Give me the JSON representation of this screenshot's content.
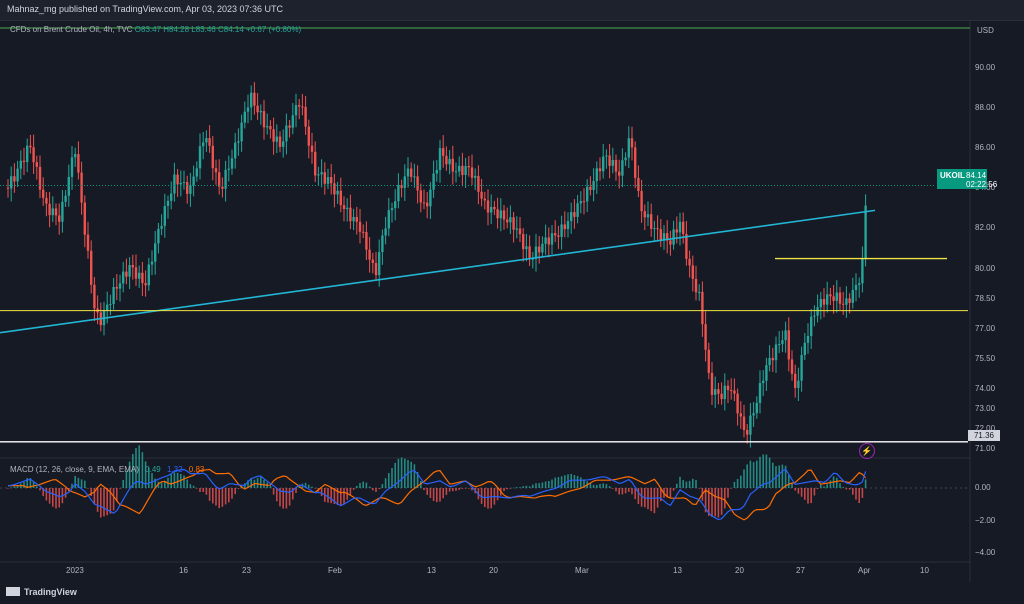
{
  "header": {
    "published": "Mahnaz_mg published on TradingView.com, Apr 03, 2023 07:36 UTC"
  },
  "legend": {
    "symbol": "CFDs on Brent Crude Oil, 4h, TVC",
    "ohlc": "O83.47 H84.28 L83.46 C84.14 +0.67 (+0.80%)"
  },
  "price_axis": {
    "currency": "USD",
    "ticks": [
      "90.00",
      "88.00",
      "86.00",
      "84.00",
      "82.00",
      "80.00",
      "78.50",
      "77.00",
      "75.50",
      "74.00",
      "73.00",
      "72.00",
      "71.00"
    ]
  },
  "price_badge": {
    "symbol": "UKOIL",
    "price": "84.14",
    "countdown": "02:22:56"
  },
  "level_badge": "71.36",
  "macd": {
    "title": "MACD (12, 26, close, 9, EMA, EMA)",
    "hist": "0.49",
    "macd": "1.32",
    "signal": "0.83",
    "ticks": [
      "0.00",
      "−2.00",
      "−4.00"
    ]
  },
  "time_axis": [
    "2023",
    "16",
    "23",
    "Feb",
    "13",
    "20",
    "Mar",
    "13",
    "20",
    "27",
    "Apr",
    "10"
  ],
  "footer": {
    "brand": "TradingView"
  },
  "colors": {
    "up": "#26a69a",
    "down": "#ef5350",
    "trendline": "#22b5d4",
    "support": "#f0e442",
    "low_level": "#ffffff",
    "macd_line": "#2962ff",
    "signal_line": "#ff6d00"
  },
  "chart_data": {
    "type": "candlestick",
    "title": "CFDs on Brent Crude Oil, 4h, TVC",
    "ylim": [
      70.5,
      91.5
    ],
    "x_ticks": [
      "2023",
      "16",
      "23",
      "Feb",
      "13",
      "20",
      "Mar",
      "13",
      "20",
      "27",
      "Apr",
      "10"
    ],
    "price_path": [
      [
        0,
        83.5
      ],
      [
        15,
        84.5
      ],
      [
        30,
        86
      ],
      [
        45,
        83
      ],
      [
        60,
        82.5
      ],
      [
        75,
        86.2
      ],
      [
        85,
        82
      ],
      [
        95,
        78
      ],
      [
        100,
        77.5
      ],
      [
        115,
        79
      ],
      [
        130,
        80
      ],
      [
        145,
        79
      ],
      [
        160,
        82
      ],
      [
        175,
        84.5
      ],
      [
        190,
        84
      ],
      [
        205,
        87
      ],
      [
        220,
        84
      ],
      [
        235,
        86
      ],
      [
        250,
        88.5
      ],
      [
        265,
        87
      ],
      [
        280,
        86
      ],
      [
        300,
        88.5
      ],
      [
        315,
        85
      ],
      [
        330,
        84.5
      ],
      [
        345,
        83
      ],
      [
        360,
        82
      ],
      [
        375,
        79.5
      ],
      [
        385,
        82
      ],
      [
        400,
        84
      ],
      [
        410,
        85
      ],
      [
        425,
        83
      ],
      [
        440,
        86
      ],
      [
        455,
        85
      ],
      [
        470,
        85
      ],
      [
        485,
        83
      ],
      [
        500,
        82.5
      ],
      [
        515,
        82
      ],
      [
        530,
        80.5
      ],
      [
        545,
        81.5
      ],
      [
        560,
        82
      ],
      [
        575,
        83
      ],
      [
        590,
        84
      ],
      [
        605,
        85.5
      ],
      [
        620,
        84.5
      ],
      [
        630,
        86.5
      ],
      [
        640,
        83
      ],
      [
        655,
        82
      ],
      [
        670,
        81.5
      ],
      [
        680,
        82.5
      ],
      [
        690,
        80
      ],
      [
        700,
        78.5
      ],
      [
        710,
        74
      ],
      [
        720,
        73.5
      ],
      [
        730,
        74
      ],
      [
        740,
        72.5
      ],
      [
        745,
        71.5
      ],
      [
        755,
        73
      ],
      [
        765,
        75
      ],
      [
        775,
        76
      ],
      [
        785,
        77
      ],
      [
        795,
        74
      ],
      [
        805,
        76.5
      ],
      [
        815,
        78
      ],
      [
        825,
        78.5
      ],
      [
        835,
        78.5
      ],
      [
        845,
        78
      ],
      [
        855,
        78.8
      ],
      [
        862,
        79.7
      ],
      [
        866,
        83.5
      ],
      [
        868,
        84.14
      ]
    ],
    "levels": [
      {
        "label": "trendline",
        "from": [
          0,
          76.8
        ],
        "to": [
          875,
          82.9
        ]
      },
      {
        "label": "support",
        "value": 77.9
      },
      {
        "label": "resistance",
        "value": 80.5,
        "from_x": 775,
        "to_x": 947
      },
      {
        "label": "low",
        "value": 71.36
      }
    ]
  }
}
